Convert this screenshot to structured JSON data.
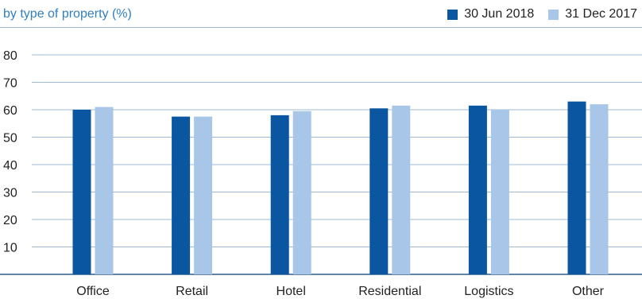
{
  "header": {
    "subtitle": "by type of property (%)"
  },
  "legend": [
    {
      "label": "30 Jun 2018",
      "color": "#0a56a1"
    },
    {
      "label": "31 Dec 2017",
      "color": "#a8c6e8"
    }
  ],
  "chart_data": {
    "type": "bar",
    "title": "",
    "subtitle": "by type of property (%)",
    "xlabel": "",
    "ylabel": "",
    "categories": [
      "Office",
      "Retail",
      "Hotel",
      "Residential",
      "Logistics",
      "Other"
    ],
    "series": [
      {
        "name": "30 Jun 2018",
        "color": "#0a56a1",
        "values": [
          60,
          57.5,
          58,
          60.5,
          61.5,
          63
        ]
      },
      {
        "name": "31 Dec 2017",
        "color": "#a8c6e8",
        "values": [
          61,
          57.5,
          59.5,
          61.5,
          60,
          62
        ]
      }
    ],
    "ylim": [
      0,
      80
    ],
    "yticks": [
      10,
      20,
      30,
      40,
      50,
      60,
      70,
      80
    ],
    "grid": true,
    "legend_position": "top-right"
  }
}
